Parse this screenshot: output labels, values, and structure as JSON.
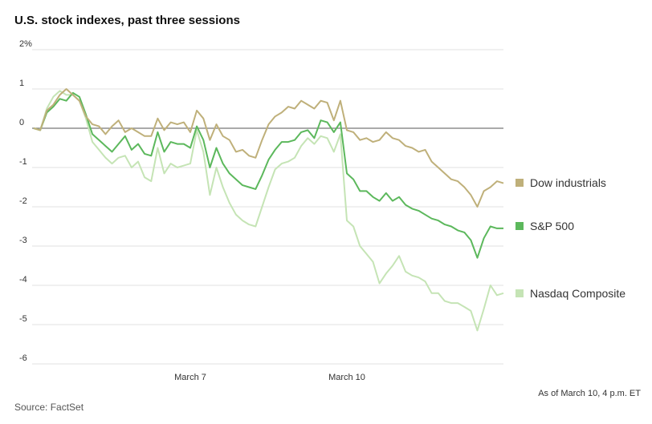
{
  "chart_data": {
    "type": "line",
    "title": "U.S. stock indexes, past three sessions",
    "source": "Source: FactSet",
    "note": "As of March 10, 4 p.m. ET",
    "categories": [
      null,
      null,
      null,
      null,
      null,
      null,
      null,
      null,
      null,
      null,
      null,
      null,
      null,
      null,
      null,
      null,
      null,
      null,
      null,
      null,
      null,
      null,
      null,
      null,
      "March 7",
      null,
      null,
      null,
      null,
      null,
      null,
      null,
      null,
      null,
      null,
      null,
      null,
      null,
      null,
      null,
      null,
      null,
      null,
      null,
      null,
      null,
      null,
      null,
      "March 10",
      null,
      null,
      null,
      null,
      null,
      null,
      null,
      null,
      null,
      null,
      null,
      null,
      null,
      null,
      null,
      null,
      null,
      null,
      null,
      null,
      null,
      null,
      null,
      null
    ],
    "series": [
      {
        "name": "Dow industrials",
        "color": "#bfb07a",
        "values": [
          0,
          -0.05,
          0.45,
          0.6,
          0.85,
          1.0,
          0.85,
          0.7,
          0.3,
          0.1,
          0.05,
          -0.15,
          0.05,
          0.2,
          -0.1,
          0.0,
          -0.1,
          -0.2,
          -0.2,
          0.25,
          -0.05,
          0.15,
          0.1,
          0.15,
          -0.1,
          0.45,
          0.25,
          -0.3,
          0.1,
          -0.2,
          -0.3,
          -0.6,
          -0.55,
          -0.7,
          -0.75,
          -0.3,
          0.1,
          0.3,
          0.4,
          0.55,
          0.5,
          0.7,
          0.6,
          0.5,
          0.7,
          0.65,
          0.2,
          0.7,
          -0.05,
          -0.1,
          -0.3,
          -0.25,
          -0.35,
          -0.3,
          -0.1,
          -0.25,
          -0.3,
          -0.45,
          -0.5,
          -0.6,
          -0.55,
          -0.85,
          -1.0,
          -1.15,
          -1.3,
          -1.35,
          -1.5,
          -1.7,
          -2.0,
          -1.6,
          -1.5,
          -1.35,
          -1.4
        ]
      },
      {
        "name": "S&P 500",
        "color": "#5cb85c",
        "values": [
          0,
          -0.05,
          0.4,
          0.55,
          0.75,
          0.7,
          0.9,
          0.8,
          0.35,
          -0.15,
          -0.3,
          -0.45,
          -0.6,
          -0.4,
          -0.2,
          -0.55,
          -0.4,
          -0.65,
          -0.7,
          -0.1,
          -0.6,
          -0.35,
          -0.4,
          -0.4,
          -0.5,
          0.05,
          -0.3,
          -1.0,
          -0.5,
          -0.9,
          -1.15,
          -1.3,
          -1.45,
          -1.5,
          -1.55,
          -1.2,
          -0.8,
          -0.55,
          -0.35,
          -0.35,
          -0.3,
          -0.1,
          -0.05,
          -0.25,
          0.2,
          0.15,
          -0.1,
          0.15,
          -1.15,
          -1.3,
          -1.6,
          -1.6,
          -1.75,
          -1.85,
          -1.65,
          -1.85,
          -1.75,
          -1.95,
          -2.05,
          -2.1,
          -2.2,
          -2.3,
          -2.35,
          -2.45,
          -2.5,
          -2.6,
          -2.65,
          -2.85,
          -3.3,
          -2.8,
          -2.5,
          -2.55,
          -2.55
        ]
      },
      {
        "name": "Nasdaq Composite",
        "color": "#c5e4b5",
        "values": [
          0,
          -0.05,
          0.5,
          0.8,
          0.95,
          0.85,
          0.85,
          0.7,
          0.25,
          -0.35,
          -0.55,
          -0.75,
          -0.9,
          -0.75,
          -0.7,
          -1.0,
          -0.85,
          -1.25,
          -1.35,
          -0.5,
          -1.15,
          -0.9,
          -1.0,
          -0.95,
          -0.9,
          -0.05,
          -0.6,
          -1.7,
          -1.0,
          -1.5,
          -1.9,
          -2.2,
          -2.35,
          -2.45,
          -2.5,
          -2.0,
          -1.5,
          -1.05,
          -0.9,
          -0.85,
          -0.75,
          -0.45,
          -0.25,
          -0.4,
          -0.2,
          -0.25,
          -0.6,
          -0.15,
          -2.35,
          -2.5,
          -3.0,
          -3.2,
          -3.4,
          -3.95,
          -3.7,
          -3.5,
          -3.25,
          -3.65,
          -3.75,
          -3.8,
          -3.9,
          -4.2,
          -4.2,
          -4.4,
          -4.45,
          -4.45,
          -4.55,
          -4.65,
          -5.15,
          -4.6,
          -4.0,
          -4.25,
          -4.2
        ]
      }
    ],
    "ylim": [
      -6,
      2
    ],
    "yticks": [
      {
        "value": 2,
        "label": "2%"
      },
      1,
      0,
      -1,
      -2,
      -3,
      -4,
      -5,
      -6
    ],
    "grid": true,
    "legend": "right"
  }
}
